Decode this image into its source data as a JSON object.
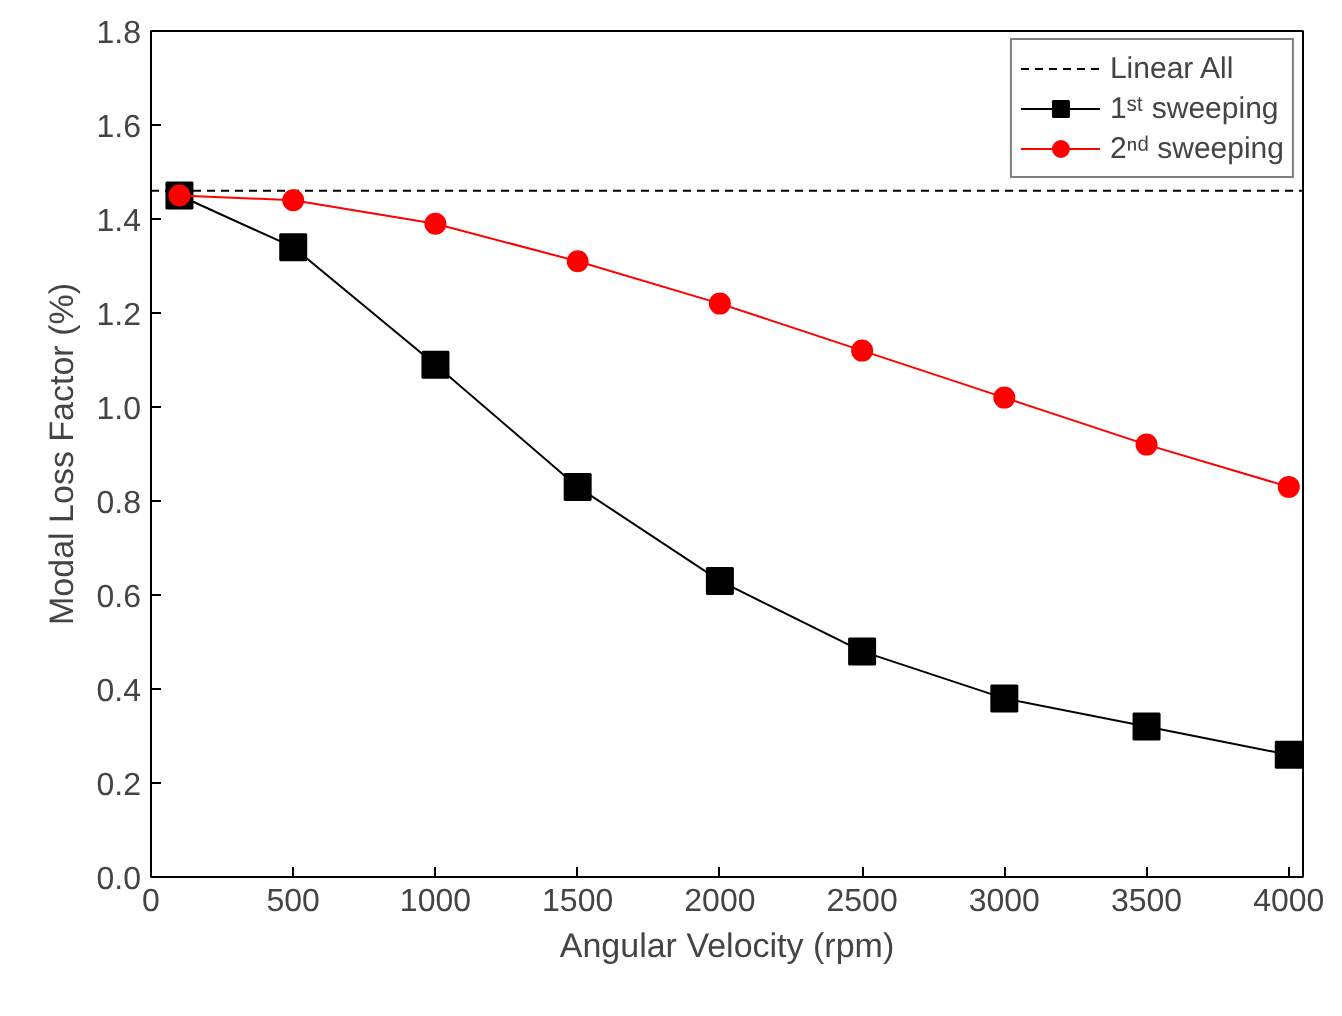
{
  "chart_data": {
    "type": "line",
    "xlabel": "Angular Velocity (rpm)",
    "ylabel": "Modal Loss Factor (%)",
    "x": [
      100,
      500,
      1000,
      1500,
      2000,
      2500,
      3000,
      3500,
      4000
    ],
    "series": [
      {
        "name": "1ˢᵗ sweeping",
        "color": "#000000",
        "marker": "square",
        "values": [
          1.45,
          1.34,
          1.09,
          0.83,
          0.63,
          0.48,
          0.38,
          0.32,
          0.26
        ]
      },
      {
        "name": "2ⁿᵈ sweeping",
        "color": "#ff0000",
        "marker": "circle",
        "values": [
          1.45,
          1.44,
          1.39,
          1.31,
          1.22,
          1.12,
          1.02,
          0.92,
          0.83
        ]
      }
    ],
    "ref_lines": [
      {
        "axis": "y",
        "value": 1.46,
        "label": "Linear All",
        "color": "#000000",
        "line_style": "dashed"
      }
    ],
    "xlim": [
      0,
      4050
    ],
    "ylim": [
      0,
      1.8
    ],
    "xticks": [
      0,
      500,
      1000,
      1500,
      2000,
      2500,
      3000,
      3500,
      4000
    ],
    "yticks": [
      {
        "value": 0,
        "label": "0.0"
      },
      {
        "value": 0.2,
        "label": "0.2"
      },
      {
        "value": 0.4,
        "label": "0.4"
      },
      {
        "value": 0.6,
        "label": "0.6"
      },
      {
        "value": 0.8,
        "label": "0.8"
      },
      {
        "value": 1.0,
        "label": "1.0"
      },
      {
        "value": 1.2,
        "label": "1.2"
      },
      {
        "value": 1.4,
        "label": "1.4"
      },
      {
        "value": 1.6,
        "label": "1.6"
      },
      {
        "value": 1.8,
        "label": "1.8"
      }
    ],
    "grid": false,
    "legend": "top right",
    "line_style": "solid"
  }
}
